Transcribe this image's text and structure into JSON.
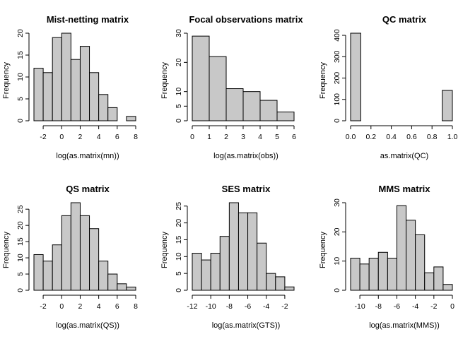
{
  "chart_data": [
    {
      "type": "bar",
      "title": "Mist-netting matrix",
      "xlabel": "log(as.matrix(mn))",
      "ylabel": "Frequency",
      "bin_edges": [
        -3,
        -2,
        -1,
        0,
        1,
        2,
        3,
        4,
        5,
        6,
        7,
        8
      ],
      "values": [
        12,
        11,
        19,
        20,
        14,
        17,
        11,
        6,
        3,
        0,
        1
      ],
      "xticks": [
        -2,
        0,
        2,
        4,
        6,
        8
      ],
      "yticks": [
        0,
        5,
        10,
        15,
        20
      ],
      "xlim": [
        -3,
        8
      ],
      "ylim": [
        0,
        20
      ]
    },
    {
      "type": "bar",
      "title": "Focal observations matrix",
      "xlabel": "log(as.matrix(obs))",
      "ylabel": "Frequency",
      "bin_edges": [
        0,
        1,
        2,
        3,
        4,
        5,
        6
      ],
      "values": [
        29,
        22,
        11,
        10,
        7,
        3
      ],
      "xticks": [
        0,
        1,
        2,
        3,
        4,
        5,
        6
      ],
      "yticks": [
        0,
        5,
        10,
        20,
        30
      ],
      "xlim": [
        0,
        6
      ],
      "ylim": [
        0,
        30
      ]
    },
    {
      "type": "bar",
      "title": "QC matrix",
      "xlabel": "as.matrix(QC)",
      "ylabel": "Frequency",
      "bin_edges": [
        0,
        0.1,
        0.2,
        0.3,
        0.4,
        0.5,
        0.6,
        0.7,
        0.8,
        0.9,
        1.0
      ],
      "values": [
        410,
        0,
        0,
        0,
        0,
        0,
        0,
        0,
        0,
        142
      ],
      "xticks": [
        0.0,
        0.2,
        0.4,
        0.6,
        0.8,
        1.0
      ],
      "xtick_labels": [
        "0.0",
        "0.2",
        "0.4",
        "0.6",
        "0.8",
        "1.0"
      ],
      "yticks": [
        0,
        100,
        200,
        300,
        400
      ],
      "xlim": [
        0,
        1
      ],
      "ylim": [
        0,
        410
      ]
    },
    {
      "type": "bar",
      "title": "QS matrix",
      "xlabel": "log(as.matrix(QS))",
      "ylabel": "Frequency",
      "bin_edges": [
        -3,
        -2,
        -1,
        0,
        1,
        2,
        3,
        4,
        5,
        6,
        7,
        8
      ],
      "values": [
        11,
        9,
        14,
        23,
        27,
        23,
        19,
        9,
        5,
        2,
        1
      ],
      "xticks": [
        -2,
        0,
        2,
        4,
        6,
        8
      ],
      "yticks": [
        0,
        5,
        10,
        15,
        20,
        25
      ],
      "xlim": [
        -3,
        8
      ],
      "ylim": [
        0,
        27
      ]
    },
    {
      "type": "bar",
      "title": "SES matrix",
      "xlabel": "log(as.matrix(GTS))",
      "ylabel": "Frequency",
      "bin_edges": [
        -12,
        -11,
        -10,
        -9,
        -8,
        -7,
        -6,
        -5,
        -4,
        -3,
        -2,
        -1
      ],
      "values": [
        11,
        9,
        11,
        16,
        26,
        23,
        23,
        14,
        5,
        4,
        1
      ],
      "xticks": [
        -12,
        -10,
        -8,
        -6,
        -4,
        -2
      ],
      "yticks": [
        0,
        5,
        10,
        15,
        20,
        25
      ],
      "xlim": [
        -12,
        -1
      ],
      "ylim": [
        0,
        26
      ]
    },
    {
      "type": "bar",
      "title": "MMS matrix",
      "xlabel": "log(as.matrix(MMS))",
      "ylabel": "Frequency",
      "bin_edges": [
        -11,
        -10,
        -9,
        -8,
        -7,
        -6,
        -5,
        -4,
        -3,
        -2,
        -1,
        0
      ],
      "values": [
        11,
        9,
        11,
        13,
        11,
        29,
        24,
        19,
        6,
        8,
        2
      ],
      "xticks": [
        -10,
        -8,
        -6,
        -4,
        -2,
        0
      ],
      "yticks": [
        0,
        10,
        20,
        30
      ],
      "xlim": [
        -11,
        0
      ],
      "ylim": [
        0,
        30
      ]
    }
  ]
}
